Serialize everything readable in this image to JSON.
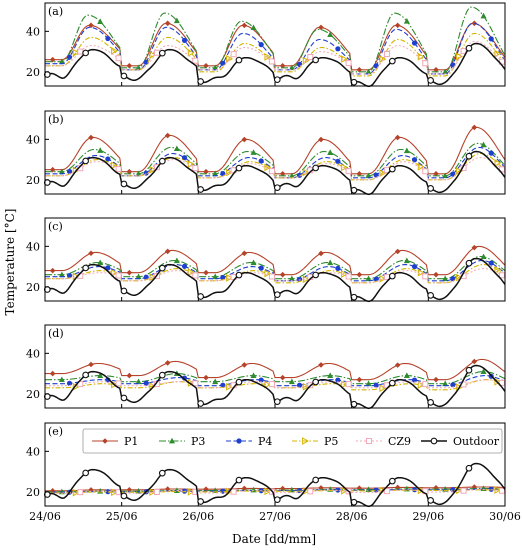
{
  "figure": {
    "ylabel": "Temperature [°C]",
    "xlabel": "Date [dd/mm]",
    "xticks": [
      "24/06",
      "25/06",
      "26/06",
      "27/06",
      "28/06",
      "29/06",
      "30/06"
    ],
    "yticks": [
      "20",
      "40"
    ],
    "legend": [
      "P1",
      "P3",
      "P4",
      "P5",
      "CZ9",
      "Outdoor"
    ]
  },
  "colors": {
    "P1": "#b5432a",
    "P3": "#2e8b2e",
    "P4": "#1f3fcf",
    "P5": "#d4b400",
    "CZ9": "#f2a8b8",
    "Outdoor": "#111111"
  },
  "chart_data": [
    {
      "type": "line",
      "panel": "(a)",
      "x": [
        "24/06",
        "25/06",
        "26/06",
        "27/06",
        "28/06",
        "29/06",
        "30/06"
      ],
      "ylim": [
        13,
        54
      ],
      "grid": false,
      "series": [
        {
          "name": "P1",
          "min": [
            26,
            23,
            23,
            23,
            21,
            21
          ],
          "max": [
            43,
            44,
            43,
            42,
            43,
            44
          ],
          "phase": 0.58
        },
        {
          "name": "P3",
          "min": [
            25,
            22,
            22,
            22,
            20,
            20
          ],
          "max": [
            48,
            49,
            45,
            41,
            49,
            52
          ],
          "phase": 0.56
        },
        {
          "name": "P4",
          "min": [
            24,
            21,
            21,
            21,
            19,
            19
          ],
          "max": [
            42,
            42,
            39,
            36,
            41,
            44
          ],
          "phase": 0.58
        },
        {
          "name": "P5",
          "min": [
            23,
            21,
            20,
            20,
            18,
            18
          ],
          "max": [
            37,
            37,
            34,
            32,
            36,
            39
          ],
          "phase": 0.6
        },
        {
          "name": "CZ9",
          "min": [
            23,
            21,
            21,
            21,
            19,
            19
          ],
          "max": [
            33,
            33,
            32,
            30,
            33,
            35
          ],
          "phase": 0.6
        },
        {
          "name": "Outdoor",
          "min": [
            18,
            17,
            16,
            17,
            14,
            15
          ],
          "max": [
            31,
            31,
            27,
            27,
            27,
            34
          ],
          "phase": 0.62
        }
      ]
    },
    {
      "type": "line",
      "panel": "(b)",
      "x": [
        "24/06",
        "25/06",
        "26/06",
        "27/06",
        "28/06",
        "29/06",
        "30/06"
      ],
      "ylim": [
        13,
        54
      ],
      "grid": false,
      "series": [
        {
          "name": "P1",
          "min": [
            25,
            24,
            24,
            23,
            23,
            23
          ],
          "max": [
            41,
            42,
            40,
            40,
            41,
            46
          ],
          "phase": 0.62
        },
        {
          "name": "P3",
          "min": [
            24,
            23,
            23,
            22,
            22,
            22
          ],
          "max": [
            35,
            36,
            34,
            34,
            35,
            38
          ],
          "phase": 0.64
        },
        {
          "name": "P4",
          "min": [
            23,
            22,
            22,
            21,
            21,
            21
          ],
          "max": [
            32,
            33,
            31,
            31,
            32,
            36
          ],
          "phase": 0.66
        },
        {
          "name": "P5",
          "min": [
            22,
            22,
            21,
            21,
            20,
            20
          ],
          "max": [
            30,
            31,
            29,
            29,
            30,
            33
          ],
          "phase": 0.68
        },
        {
          "name": "CZ9",
          "min": [
            22,
            22,
            21,
            21,
            20,
            20
          ],
          "max": [
            29,
            30,
            28,
            28,
            29,
            31
          ],
          "phase": 0.68
        },
        {
          "name": "Outdoor",
          "min": [
            18,
            17,
            16,
            17,
            14,
            15
          ],
          "max": [
            31,
            31,
            27,
            27,
            27,
            34
          ],
          "phase": 0.62
        }
      ]
    },
    {
      "type": "line",
      "panel": "(c)",
      "x": [
        "24/06",
        "25/06",
        "26/06",
        "27/06",
        "28/06",
        "29/06",
        "30/06"
      ],
      "ylim": [
        13,
        54
      ],
      "grid": false,
      "series": [
        {
          "name": "P1",
          "min": [
            28,
            27,
            27,
            26,
            26,
            26
          ],
          "max": [
            37,
            38,
            37,
            37,
            38,
            40
          ],
          "phase": 0.66
        },
        {
          "name": "P3",
          "min": [
            26,
            25,
            25,
            24,
            24,
            24
          ],
          "max": [
            32,
            33,
            32,
            32,
            33,
            35
          ],
          "phase": 0.68
        },
        {
          "name": "P4",
          "min": [
            25,
            24,
            24,
            23,
            23,
            23
          ],
          "max": [
            30,
            31,
            30,
            30,
            31,
            33
          ],
          "phase": 0.7
        },
        {
          "name": "P5",
          "min": [
            24,
            23,
            23,
            22,
            22,
            22
          ],
          "max": [
            28,
            29,
            28,
            28,
            29,
            31
          ],
          "phase": 0.72
        },
        {
          "name": "CZ9",
          "min": [
            24,
            23,
            23,
            23,
            22,
            22
          ],
          "max": [
            27,
            28,
            27,
            27,
            28,
            29
          ],
          "phase": 0.72
        },
        {
          "name": "Outdoor",
          "min": [
            18,
            17,
            16,
            17,
            14,
            15
          ],
          "max": [
            31,
            31,
            27,
            27,
            27,
            34
          ],
          "phase": 0.62
        }
      ]
    },
    {
      "type": "line",
      "panel": "(d)",
      "x": [
        "24/06",
        "25/06",
        "26/06",
        "27/06",
        "28/06",
        "29/06",
        "30/06"
      ],
      "ylim": [
        13,
        54
      ],
      "grid": false,
      "series": [
        {
          "name": "P1",
          "min": [
            30,
            29,
            28,
            28,
            27,
            27
          ],
          "max": [
            35,
            36,
            35,
            35,
            35,
            37
          ],
          "phase": 0.7
        },
        {
          "name": "P3",
          "min": [
            27,
            26,
            26,
            26,
            25,
            25
          ],
          "max": [
            29,
            30,
            29,
            29,
            29,
            31
          ],
          "phase": 0.72
        },
        {
          "name": "P4",
          "min": [
            25,
            25,
            24,
            24,
            24,
            24
          ],
          "max": [
            27,
            28,
            27,
            27,
            27,
            29
          ],
          "phase": 0.74
        },
        {
          "name": "P5",
          "min": [
            23,
            23,
            23,
            23,
            22,
            22
          ],
          "max": [
            25,
            26,
            25,
            25,
            25,
            27
          ],
          "phase": 0.76
        },
        {
          "name": "CZ9",
          "min": [
            24,
            24,
            23,
            23,
            23,
            23
          ],
          "max": [
            26,
            26,
            26,
            26,
            26,
            27
          ],
          "phase": 0.76
        },
        {
          "name": "Outdoor",
          "min": [
            18,
            17,
            16,
            17,
            14,
            15
          ],
          "max": [
            31,
            31,
            27,
            27,
            27,
            34
          ],
          "phase": 0.62
        }
      ]
    },
    {
      "type": "line",
      "panel": "(e)",
      "x": [
        "24/06",
        "25/06",
        "26/06",
        "27/06",
        "28/06",
        "29/06",
        "30/06"
      ],
      "ylim": [
        13,
        54
      ],
      "grid": false,
      "series": [
        {
          "name": "P1",
          "min": [
            20.5,
            21,
            21.3,
            21.6,
            21.8,
            22
          ],
          "max": [
            21,
            21.4,
            21.7,
            22,
            22.2,
            22.4
          ],
          "phase": 0.7
        },
        {
          "name": "P3",
          "min": [
            20,
            20.3,
            20.6,
            20.9,
            21.1,
            21.3
          ],
          "max": [
            20.3,
            20.6,
            20.9,
            21.2,
            21.4,
            21.6
          ],
          "phase": 0.7
        },
        {
          "name": "P4",
          "min": [
            19.8,
            20,
            20.3,
            20.6,
            20.8,
            21
          ],
          "max": [
            20.1,
            20.4,
            20.6,
            20.9,
            21.1,
            21.3
          ],
          "phase": 0.7
        },
        {
          "name": "P5",
          "min": [
            19.5,
            19.8,
            20,
            20.3,
            20.5,
            20.7
          ],
          "max": [
            19.9,
            20.1,
            20.4,
            20.6,
            20.8,
            21
          ],
          "phase": 0.7
        },
        {
          "name": "CZ9",
          "min": [
            19.3,
            19.3,
            19.4,
            19.6,
            19.7,
            19.9
          ],
          "max": [
            20.4,
            20.6,
            20.7,
            20.9,
            21,
            21.2
          ],
          "phase": 0.7
        },
        {
          "name": "Outdoor",
          "min": [
            18,
            17,
            16,
            17,
            14,
            15
          ],
          "max": [
            31,
            31,
            27,
            27,
            27,
            34
          ],
          "phase": 0.62
        }
      ],
      "legend_position": "top"
    }
  ]
}
